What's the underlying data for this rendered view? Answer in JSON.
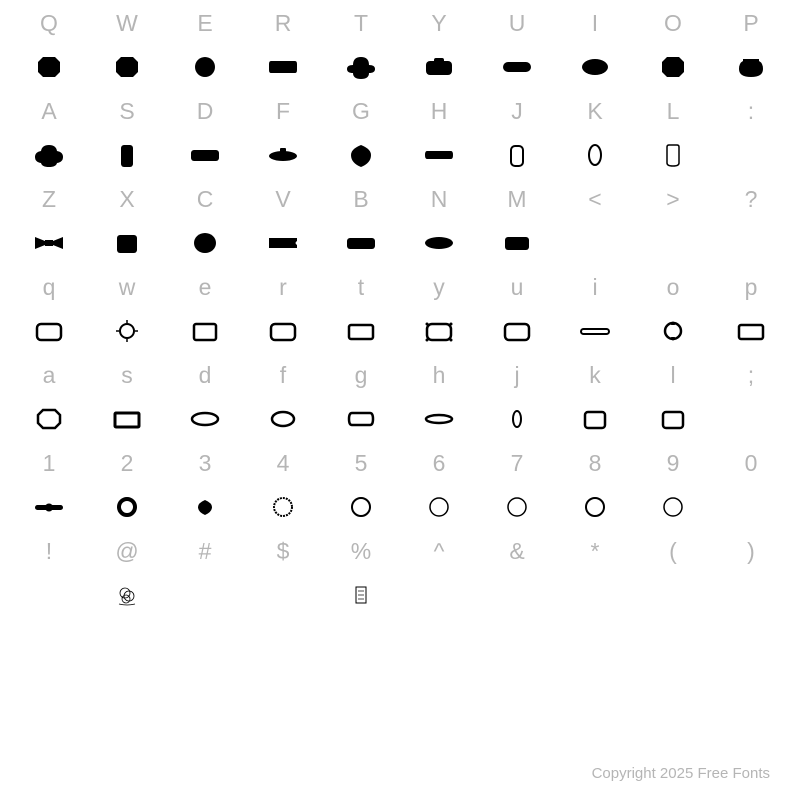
{
  "cell_label_color": "#b5b5b5",
  "glyph_fill": "#000000",
  "glyph_outline_stroke": "#000000",
  "background": "#ffffff",
  "footer": "Copyright 2025 Free Fonts",
  "rows": [
    {
      "keys": [
        "Q",
        "W",
        "E",
        "R",
        "T",
        "Y",
        "U",
        "I",
        "O",
        "P"
      ],
      "glyphs": [
        "filled-octagon",
        "filled-octagon",
        "filled-circle",
        "filled-hrect-notch",
        "filled-quatrefoil",
        "filled-camera",
        "filled-pill-wide",
        "filled-oval",
        "filled-octagon",
        "filled-jar"
      ]
    },
    {
      "keys": [
        "A",
        "S",
        "D",
        "F",
        "G",
        "H",
        "J",
        "K",
        "L",
        ":"
      ],
      "glyphs": [
        "filled-flower",
        "filled-vrect-round",
        "filled-plaque-wide",
        "filled-submarine",
        "filled-blob-diamond",
        "filled-plaque",
        "outline-vrect-round",
        "outline-vpill",
        "outline-tag",
        ""
      ]
    },
    {
      "keys": [
        "Z",
        "X",
        "C",
        "V",
        "B",
        "N",
        "M",
        "<",
        ">",
        "?"
      ],
      "glyphs": [
        "filled-bowtie",
        "filled-sq-round",
        "filled-pumpkin",
        "filled-ticket",
        "filled-plaque-wide",
        "filled-lens",
        "filled-hrect-round",
        "",
        "",
        ""
      ]
    },
    {
      "keys": [
        "q",
        "w",
        "e",
        "r",
        "t",
        "y",
        "u",
        "i",
        "o",
        "p"
      ],
      "glyphs": [
        "outline-frame-round",
        "outline-sun",
        "outline-frame-sq",
        "outline-frame-round",
        "outline-hrect",
        "outline-frame-fancy",
        "outline-frame-round",
        "outline-bar",
        "outline-compass",
        "outline-hrect"
      ]
    },
    {
      "keys": [
        "a",
        "s",
        "d",
        "f",
        "g",
        "h",
        "j",
        "k",
        "l",
        ";"
      ],
      "glyphs": [
        "outline-octagon",
        "outline-hrect-thick",
        "outline-lens",
        "outline-oval",
        "outline-cartouche",
        "outline-saucer",
        "outline-vpill-small",
        "outline-sq-round",
        "outline-sq-round",
        ""
      ]
    },
    {
      "keys": [
        "1",
        "2",
        "3",
        "4",
        "5",
        "6",
        "7",
        "8",
        "9",
        "0"
      ],
      "glyphs": [
        "filled-bar-dot",
        "outline-ring-thick",
        "filled-blob-diamond-small",
        "outline-wreath",
        "outline-ring",
        "outline-ring-ornate",
        "outline-ring-ornate",
        "outline-ring",
        "outline-ring-ornate",
        ""
      ]
    },
    {
      "keys": [
        "!",
        "@",
        "#",
        "$",
        "%",
        "^",
        "&",
        "*",
        "(",
        ")"
      ],
      "glyphs": [
        "",
        "scribble",
        "",
        "",
        "placeholder-box",
        "",
        "",
        "",
        "",
        ""
      ]
    }
  ]
}
